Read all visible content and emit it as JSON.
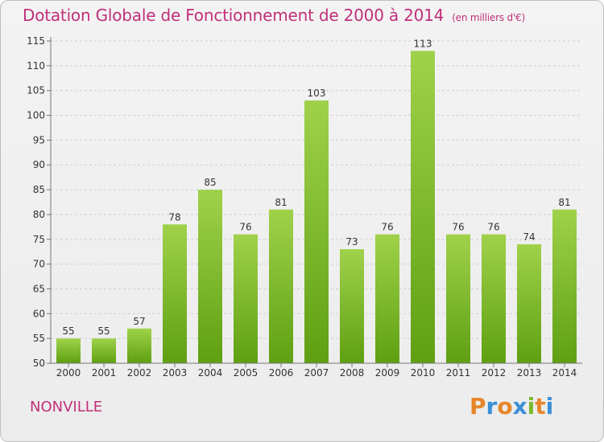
{
  "header": {
    "title": "Dotation Globale de Fonctionnement de 2000 à 2014",
    "subtitle": "(en milliers d'€)"
  },
  "footer": {
    "commune": "NONVILLE",
    "logo": "Proxiti"
  },
  "colors": {
    "title": "#c0307a",
    "bar_light": "#9fd24a",
    "bar_dark": "#5f9f12",
    "logo_letters": [
      "#e6862a",
      "#3a8fd6",
      "#e6862a",
      "#3a8fd6",
      "#7cb82f",
      "#e6862a",
      "#3a8fd6"
    ]
  },
  "chart_data": {
    "type": "bar",
    "title": "Dotation Globale de Fonctionnement de 2000 à 2014",
    "subtitle": "(en milliers d'€)",
    "categories": [
      "2000",
      "2001",
      "2002",
      "2003",
      "2004",
      "2005",
      "2006",
      "2007",
      "2008",
      "2009",
      "2010",
      "2011",
      "2012",
      "2013",
      "2014"
    ],
    "values": [
      55,
      55,
      57,
      78,
      85,
      76,
      81,
      103,
      73,
      76,
      113,
      76,
      76,
      74,
      81
    ],
    "ylim": [
      50,
      115
    ],
    "yticks": [
      50,
      55,
      60,
      65,
      70,
      75,
      80,
      85,
      90,
      95,
      100,
      105,
      110,
      115
    ],
    "grid": true,
    "data_labels": true
  }
}
